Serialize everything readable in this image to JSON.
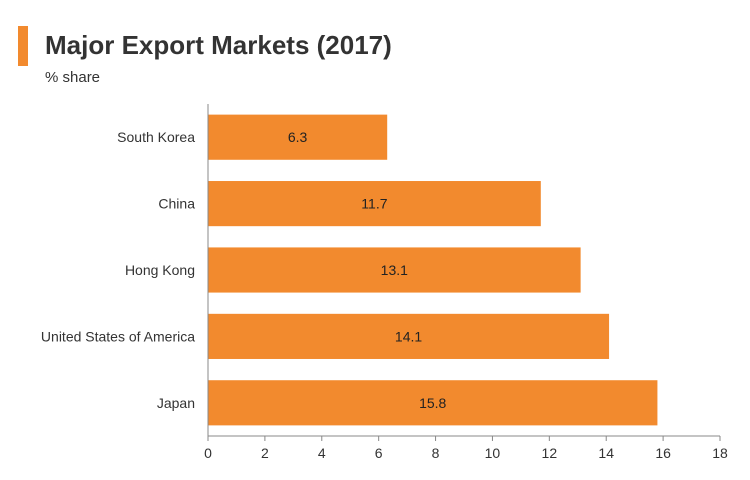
{
  "header": {
    "title": "Major Export Markets (2017)",
    "subtitle": "% share"
  },
  "colors": {
    "accent": "#f28a2e",
    "bar": "#f28a2e",
    "axis": "#888888",
    "text": "#333333"
  },
  "chart_data": {
    "type": "bar",
    "orientation": "horizontal",
    "title": "Major Export Markets (2017)",
    "subtitle": "% share",
    "categories": [
      "South Korea",
      "China",
      "Hong Kong",
      "United States of America",
      "Japan"
    ],
    "values": [
      6.3,
      11.7,
      13.1,
      14.1,
      15.8
    ],
    "data_labels": [
      "6.3",
      "11.7",
      "13.1",
      "14.1",
      "15.8"
    ],
    "xlim": [
      0,
      18
    ],
    "xticks": [
      0,
      2,
      4,
      6,
      8,
      10,
      12,
      14,
      16,
      18
    ],
    "grid": false,
    "legend": "none"
  }
}
